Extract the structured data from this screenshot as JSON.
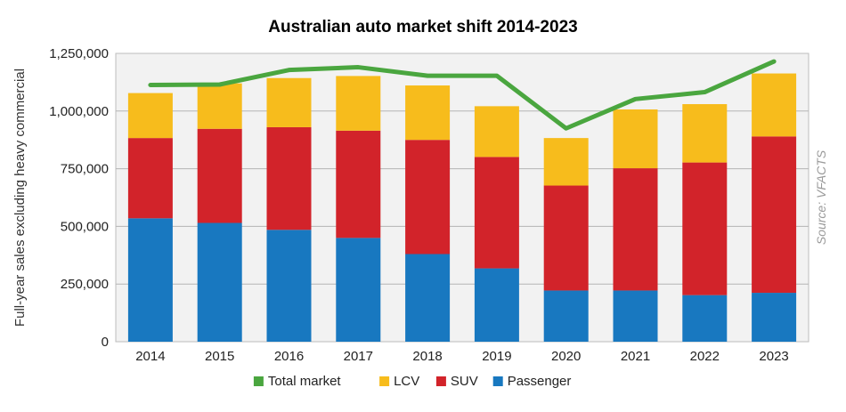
{
  "chart_data": {
    "type": "bar",
    "stacked": true,
    "title": "Australian auto market shift 2014-2023",
    "ylabel": "Full-year sales excluding heavy commercial",
    "xlabel": "",
    "source": "Source: VFACTS",
    "categories": [
      "2014",
      "2015",
      "2016",
      "2017",
      "2018",
      "2019",
      "2020",
      "2021",
      "2022",
      "2023"
    ],
    "ylim": [
      0,
      1250000
    ],
    "yticks": [
      0,
      250000,
      500000,
      750000,
      1000000,
      1250000
    ],
    "ytick_labels": [
      "0",
      "250,000",
      "500,000",
      "750,000",
      "1,000,000",
      "1,250,000"
    ],
    "grid": true,
    "legend_position": "bottom",
    "series": [
      {
        "name": "Passenger",
        "kind": "bar",
        "color": "#1878c0",
        "values": [
          535000,
          515000,
          485000,
          450000,
          380000,
          318000,
          222000,
          222000,
          202000,
          212000
        ]
      },
      {
        "name": "SUV",
        "kind": "bar",
        "color": "#d2232a",
        "values": [
          348000,
          408000,
          445000,
          465000,
          495000,
          483000,
          455000,
          530000,
          575000,
          678000
        ]
      },
      {
        "name": "LCV",
        "kind": "bar",
        "color": "#f7bc1c",
        "values": [
          195000,
          197000,
          213000,
          237000,
          236000,
          220000,
          206000,
          255000,
          253000,
          273000
        ]
      },
      {
        "name": "Total market",
        "kind": "line",
        "color": "#4aa63f",
        "values": [
          1113000,
          1115000,
          1178000,
          1190000,
          1153000,
          1153000,
          925000,
          1052000,
          1082000,
          1215000
        ]
      }
    ],
    "legend_order": [
      "Total market",
      "LCV",
      "SUV",
      "Passenger"
    ]
  }
}
